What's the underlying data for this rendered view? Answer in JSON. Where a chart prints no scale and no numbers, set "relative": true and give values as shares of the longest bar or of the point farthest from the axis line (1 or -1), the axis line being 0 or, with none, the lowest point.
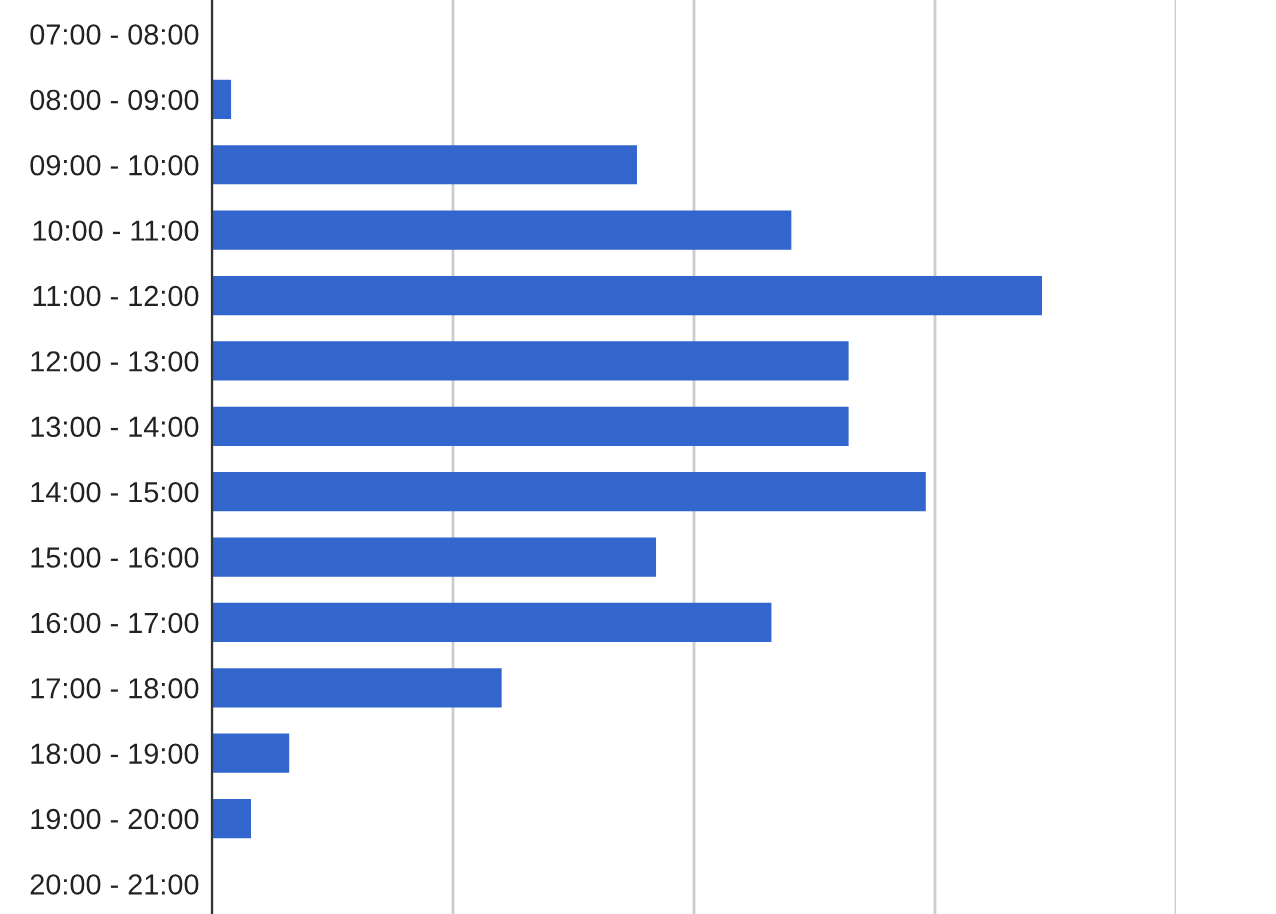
{
  "chart_data": {
    "type": "bar",
    "orientation": "horizontal",
    "relative": true,
    "categories": [
      "07:00 - 08:00",
      "08:00 - 09:00",
      "09:00 - 10:00",
      "10:00 - 11:00",
      "11:00 - 12:00",
      "12:00 - 13:00",
      "13:00 - 14:00",
      "14:00 - 15:00",
      "15:00 - 16:00",
      "16:00 - 17:00",
      "17:00 - 18:00",
      "18:00 - 19:00",
      "19:00 - 20:00",
      "20:00 - 21:00"
    ],
    "values": [
      0,
      0.023,
      0.512,
      0.698,
      1,
      0.767,
      0.767,
      0.86,
      0.535,
      0.674,
      0.349,
      0.093,
      0.047,
      0
    ],
    "color": "#3366cc",
    "grid": "x"
  }
}
